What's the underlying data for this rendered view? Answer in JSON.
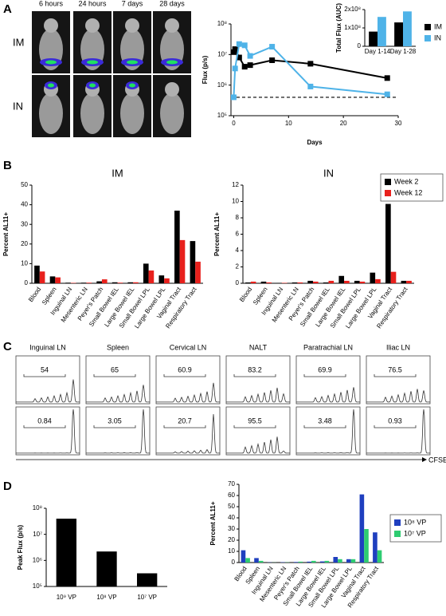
{
  "panels": [
    "A",
    "B",
    "C",
    "D"
  ],
  "imaging": {
    "timepoints": [
      "6 hours",
      "24 hours",
      "7 days",
      "28 days"
    ],
    "rows": [
      "IM",
      "IN"
    ]
  },
  "flow_panels": {
    "columns": [
      "Inguinal LN",
      "Spleen",
      "Cervical LN",
      "NALT",
      "Paratrachial LN",
      "Iliac LN"
    ],
    "gates": [
      [
        54,
        65,
        60.9,
        83.2,
        69.9,
        76.5
      ],
      [
        0.84,
        3.05,
        20.7,
        95.5,
        3.48,
        0.93
      ]
    ],
    "axis_label": "CFSE"
  },
  "chart_data": [
    {
      "type": "line",
      "x_label": "Days",
      "y_label": "Flux (p/s)",
      "yscale": "log",
      "x": [
        0,
        0.25,
        1,
        2,
        3,
        7,
        14,
        28
      ],
      "series": [
        {
          "name": "IM",
          "color": "#000000",
          "values": [
            12000000,
            15000000,
            8000000,
            4000000,
            4500000,
            6500000,
            5000000,
            1700000
          ]
        },
        {
          "name": "IN",
          "color": "#4fb3e8",
          "values": [
            400000,
            3500000,
            22000000,
            20000000,
            9000000,
            18000000,
            900000,
            500000
          ]
        }
      ],
      "reference_line": 400000,
      "xlim": [
        -0.5,
        30
      ],
      "xticks": [
        0,
        10,
        20,
        30
      ],
      "ylim": [
        100000,
        100000000
      ],
      "yticks": [
        {
          "value": 100000,
          "label": "10⁵"
        },
        {
          "value": 1000000,
          "label": "10⁶"
        },
        {
          "value": 10000000,
          "label": "10⁷"
        },
        {
          "value": 100000000,
          "label": "10⁸"
        }
      ]
    },
    {
      "type": "bar",
      "y_label": "Total Flux (AUC)",
      "categories": [
        "Day 1-14",
        "Day 1-28"
      ],
      "series": [
        {
          "name": "IM",
          "color": "#000000",
          "values": [
            80000000,
            130000000
          ]
        },
        {
          "name": "IN",
          "color": "#4fb3e8",
          "values": [
            160000000,
            190000000
          ]
        }
      ],
      "ylim": [
        0,
        200000000
      ],
      "yticks": [
        0,
        {
          "value": 100000000,
          "label": "1x10⁸"
        },
        {
          "value": 200000000,
          "label": "2x10⁸"
        }
      ]
    },
    {
      "type": "bar",
      "title": "IM",
      "y_label": "Percent AL11+",
      "categories": [
        "Blood",
        "Spleen",
        "Inguinal LN",
        "Mesenteric LN",
        "Peyer's Patch",
        "Small Bowel IEL",
        "Large Bowel IEL",
        "Small Bowel LPL",
        "Large Bowel LPL",
        "Vaginal Tract",
        "Respiratory Tract"
      ],
      "series": [
        {
          "name": "Week 2",
          "color": "#000000",
          "values": [
            9,
            3.5,
            0.3,
            0.3,
            1,
            0.5,
            0.5,
            10,
            4,
            37,
            21.5
          ]
        },
        {
          "name": "Week 12",
          "color": "#e8201c",
          "values": [
            6,
            3,
            0.2,
            0.3,
            2,
            0.3,
            0.5,
            6.5,
            2.5,
            22,
            11
          ]
        }
      ],
      "ylim": [
        0,
        50
      ],
      "yticks": [
        0,
        10,
        20,
        30,
        40,
        50
      ]
    },
    {
      "type": "bar",
      "title": "IN",
      "y_label": "Percent AL11+",
      "categories": [
        "Blood",
        "Spleen",
        "Inguinal LN",
        "Mesenteric LN",
        "Peyer's Patch",
        "Small Bowel IEL",
        "Large Bowel IEL",
        "Small Bowel LPL",
        "Large Bowel LPL",
        "Vaginal Tract",
        "Respiratory Tract"
      ],
      "series": [
        {
          "name": "Week 2",
          "color": "#000000",
          "values": [
            0.1,
            0.2,
            0.05,
            0.1,
            0.3,
            0.1,
            0.9,
            0.3,
            1.3,
            9.7,
            0.3
          ]
        },
        {
          "name": "Week 12",
          "color": "#e8201c",
          "values": [
            0.2,
            0.1,
            0.05,
            0.1,
            0.2,
            0.3,
            0.3,
            0.2,
            0.5,
            1.4,
            0.3
          ]
        }
      ],
      "ylim": [
        0,
        12
      ],
      "yticks": [
        0,
        2,
        4,
        6,
        8,
        10,
        12
      ]
    },
    {
      "type": "bar",
      "y_label": "Peak Flux (p/s)",
      "yscale": "log",
      "categories": [
        "10⁹ VP",
        "10⁸ VP",
        "10⁷ VP"
      ],
      "series": [
        {
          "color": "#000000",
          "values": [
            40000000,
            2200000,
            320000
          ]
        }
      ],
      "ylim": [
        100000,
        100000000
      ],
      "yticks": [
        {
          "value": 100000,
          "label": "10⁵"
        },
        {
          "value": 1000000,
          "label": "10⁶"
        },
        {
          "value": 10000000,
          "label": "10⁷"
        },
        {
          "value": 100000000,
          "label": "10⁸"
        }
      ]
    },
    {
      "type": "bar",
      "y_label": "Percent AL11+",
      "categories": [
        "Blood",
        "Spleen",
        "Inguinal LN",
        "Mesenteric LN",
        "Peyer's Patch",
        "Small Bowel IEL",
        "Large Bowel IEL",
        "Small Bowel LPL",
        "Large Bowel LPL",
        "Vaginal Tract",
        "Respiratory Tract"
      ],
      "series": [
        {
          "name": "10⁸ VP",
          "color": "#1f3fbf",
          "values": [
            11,
            4,
            0.2,
            0.3,
            0.5,
            0.8,
            1,
            5,
            3,
            61,
            27
          ]
        },
        {
          "name": "10⁷ VP",
          "color": "#2ecc71",
          "values": [
            4,
            1.5,
            0.1,
            0.2,
            0.8,
            1.5,
            1.5,
            3,
            3,
            30,
            11
          ]
        }
      ],
      "ylim": [
        0,
        70
      ],
      "yticks": [
        0,
        10,
        20,
        30,
        40,
        50,
        60,
        70
      ]
    }
  ]
}
